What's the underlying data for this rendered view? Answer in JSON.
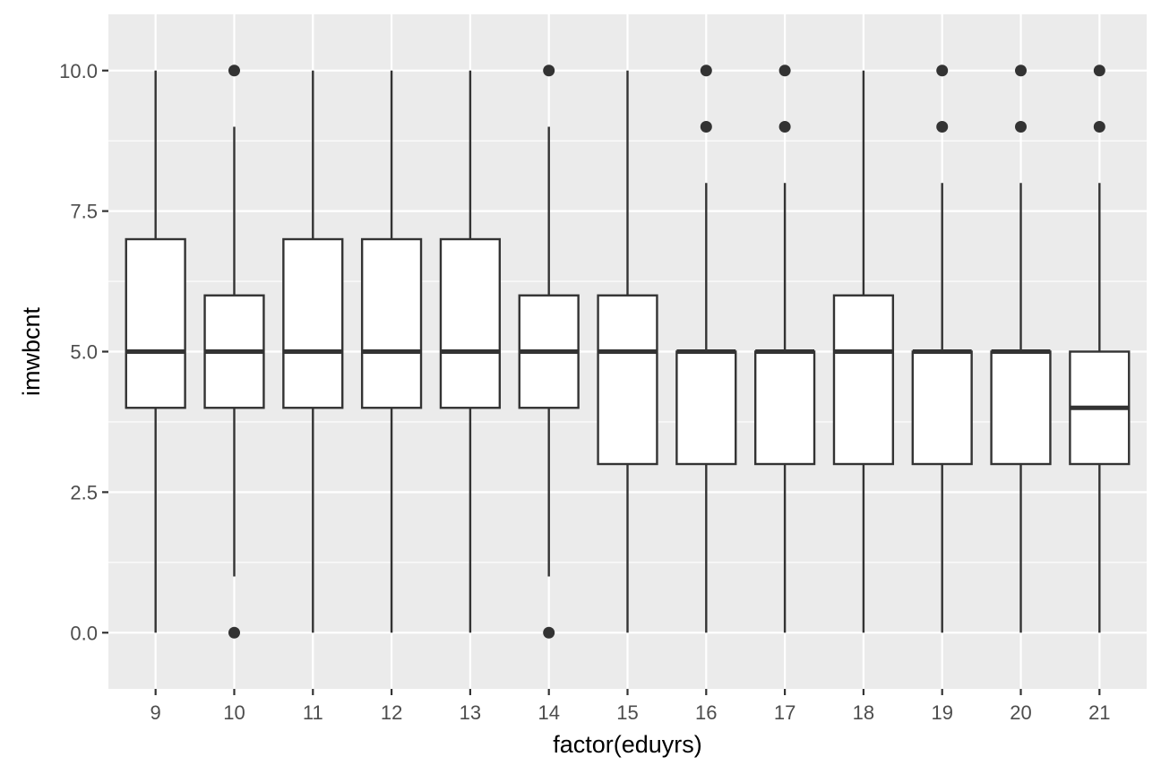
{
  "chart_data": {
    "type": "boxplot",
    "title": "",
    "xlabel": "factor(eduyrs)",
    "ylabel": "imwbcnt",
    "ylim": [
      -1,
      11
    ],
    "yticks": [
      "0.0",
      "2.5",
      "5.0",
      "7.5",
      "10.0"
    ],
    "ytick_values": [
      0,
      2.5,
      5,
      7.5,
      10
    ],
    "grid": true,
    "legend": "none",
    "colors": {
      "panel_background": "#ebebeb",
      "grid_major": "#ffffff",
      "box_fill": "#ffffff",
      "box_stroke": "#333333",
      "outlier": "#333333"
    },
    "categories": [
      "9",
      "10",
      "11",
      "12",
      "13",
      "14",
      "15",
      "16",
      "17",
      "18",
      "19",
      "20",
      "21"
    ],
    "boxes": [
      {
        "category": "9",
        "lower_whisker": 0,
        "q1": 4,
        "median": 5,
        "q3": 7,
        "upper_whisker": 10,
        "outliers": []
      },
      {
        "category": "10",
        "lower_whisker": 1,
        "q1": 4,
        "median": 5,
        "q3": 6,
        "upper_whisker": 9,
        "outliers": [
          0,
          10
        ]
      },
      {
        "category": "11",
        "lower_whisker": 0,
        "q1": 4,
        "median": 5,
        "q3": 7,
        "upper_whisker": 10,
        "outliers": []
      },
      {
        "category": "12",
        "lower_whisker": 0,
        "q1": 4,
        "median": 5,
        "q3": 7,
        "upper_whisker": 10,
        "outliers": []
      },
      {
        "category": "13",
        "lower_whisker": 0,
        "q1": 4,
        "median": 5,
        "q3": 7,
        "upper_whisker": 10,
        "outliers": []
      },
      {
        "category": "14",
        "lower_whisker": 1,
        "q1": 4,
        "median": 5,
        "q3": 6,
        "upper_whisker": 9,
        "outliers": [
          0,
          10
        ]
      },
      {
        "category": "15",
        "lower_whisker": 0,
        "q1": 3,
        "median": 5,
        "q3": 6,
        "upper_whisker": 10,
        "outliers": []
      },
      {
        "category": "16",
        "lower_whisker": 0,
        "q1": 3,
        "median": 5,
        "q3": 5,
        "upper_whisker": 8,
        "outliers": [
          9,
          10
        ]
      },
      {
        "category": "17",
        "lower_whisker": 0,
        "q1": 3,
        "median": 5,
        "q3": 5,
        "upper_whisker": 8,
        "outliers": [
          9,
          10
        ]
      },
      {
        "category": "18",
        "lower_whisker": 0,
        "q1": 3,
        "median": 5,
        "q3": 6,
        "upper_whisker": 10,
        "outliers": []
      },
      {
        "category": "19",
        "lower_whisker": 0,
        "q1": 3,
        "median": 5,
        "q3": 5,
        "upper_whisker": 8,
        "outliers": [
          9,
          10
        ]
      },
      {
        "category": "20",
        "lower_whisker": 0,
        "q1": 3,
        "median": 5,
        "q3": 5,
        "upper_whisker": 8,
        "outliers": [
          9,
          10
        ]
      },
      {
        "category": "21",
        "lower_whisker": 0,
        "q1": 3,
        "median": 4,
        "q3": 5,
        "upper_whisker": 8,
        "outliers": [
          9,
          10
        ]
      }
    ]
  }
}
